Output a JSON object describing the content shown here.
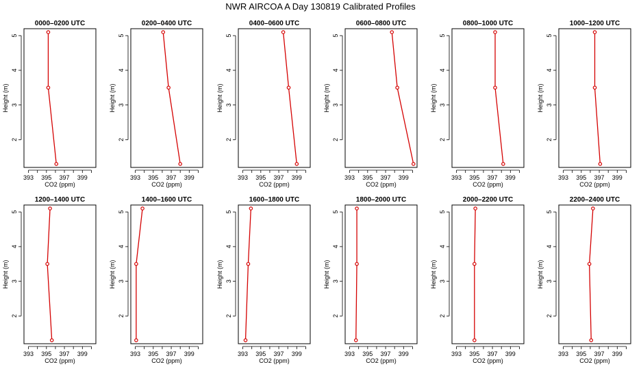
{
  "title": "NWR AIRCOA A  Day 130819  Calibrated Profiles",
  "chart_data": {
    "type": "line",
    "xlabel": "CO2 (ppm)",
    "ylabel": "Height (m)",
    "xlim": [
      392.5,
      400.5
    ],
    "ylim": [
      1.2,
      5.2
    ],
    "xticks": [
      393,
      395,
      397,
      399
    ],
    "yticks": [
      2,
      3,
      4,
      5
    ],
    "heights": [
      1.3,
      3.5,
      5.1
    ],
    "line_color": "#d40000",
    "panels": [
      {
        "title": "0000–0200 UTC",
        "values": [
          396.1,
          395.2,
          395.2
        ]
      },
      {
        "title": "0200–0400 UTC",
        "values": [
          398.0,
          396.7,
          396.1
        ]
      },
      {
        "title": "0400–0600 UTC",
        "values": [
          399.0,
          398.1,
          397.5
        ]
      },
      {
        "title": "0600–0800 UTC",
        "values": [
          400.1,
          398.3,
          397.7
        ]
      },
      {
        "title": "0800–1000 UTC",
        "values": [
          398.2,
          397.3,
          397.3
        ]
      },
      {
        "title": "1000–1200 UTC",
        "values": [
          397.1,
          396.5,
          396.5
        ]
      },
      {
        "title": "1200–1400 UTC",
        "values": [
          395.6,
          395.1,
          395.4
        ]
      },
      {
        "title": "1400–1600 UTC",
        "values": [
          393.1,
          393.1,
          393.8
        ]
      },
      {
        "title": "1600–1800 UTC",
        "values": [
          393.3,
          393.6,
          393.9
        ]
      },
      {
        "title": "1800–2000 UTC",
        "values": [
          393.7,
          393.8,
          393.8
        ]
      },
      {
        "title": "2000–2200 UTC",
        "values": [
          395.0,
          395.0,
          395.1
        ]
      },
      {
        "title": "2200–2400 UTC",
        "values": [
          396.1,
          395.9,
          396.3
        ]
      }
    ]
  }
}
